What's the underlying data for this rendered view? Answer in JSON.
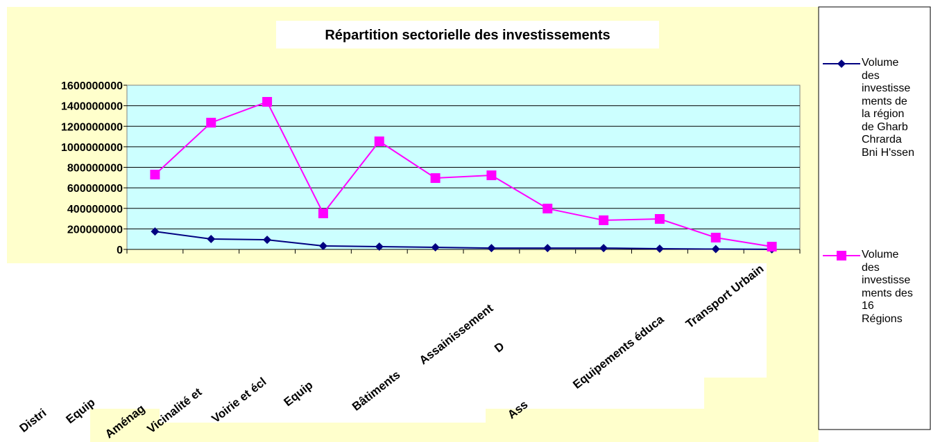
{
  "chart_data": {
    "type": "line",
    "title": "Répartition sectorielle des investissements",
    "categories": [
      "Distri",
      "Equip",
      "Aménag",
      "Vicinalité et",
      "Voirie et écl",
      "Equip",
      "Bâtiments",
      "Assainissement",
      "D",
      "Ass",
      "Equipements éduca",
      "Transport Urbain"
    ],
    "series": [
      {
        "name": "Volume des investissements de la région de Gharb Chrarda Bni H'ssen",
        "color": "#000080",
        "values": [
          175000000,
          101000000,
          94000000,
          34000000,
          27000000,
          20000000,
          13000000,
          13000000,
          13000000,
          7000000,
          3000000,
          1000000
        ]
      },
      {
        "name": "Volume des investissements des 16 Régions",
        "color": "#FF00FF",
        "values": [
          729000000,
          1235000000,
          1438000000,
          351000000,
          1053000000,
          695000000,
          722000000,
          398000000,
          284000000,
          297000000,
          115000000,
          27000000
        ]
      }
    ],
    "ylim": [
      0,
      1600000000
    ],
    "yticks": [
      0,
      200000000,
      400000000,
      600000000,
      800000000,
      1000000000,
      1200000000,
      1400000000,
      1600000000
    ],
    "grid": true,
    "legend": "right"
  }
}
